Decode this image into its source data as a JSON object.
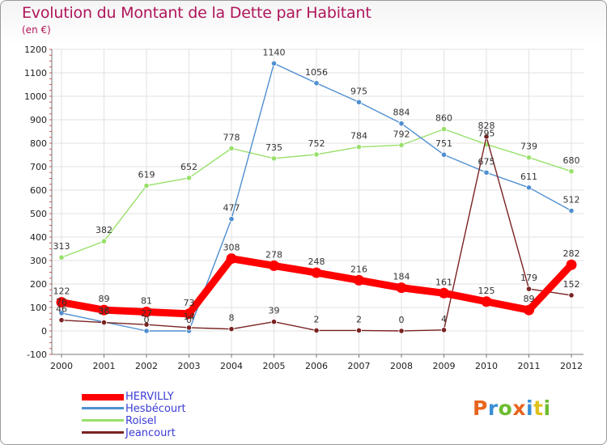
{
  "title": "Evolution du Montant de la Dette par Habitant",
  "subtitle": "(en €)",
  "logo": {
    "text": "Proxiti",
    "colors": [
      "#e8641e",
      "#3a8fd6",
      "#6cbc2f",
      "#e8641e",
      "#3a8fd6",
      "#e0c21b",
      "#6cbc2f"
    ]
  },
  "colors": {
    "title": "#b0155a",
    "legend_text": "#3b3bd6",
    "axis": "#777777",
    "grid": "#e2e2e2",
    "minor_tick": "#e05050"
  },
  "chart_data": {
    "type": "line",
    "title": "Evolution du Montant de la Dette par Habitant",
    "subtitle": "(en €)",
    "x": [
      "2000",
      "2001",
      "2002",
      "2003",
      "2004",
      "2005",
      "2006",
      "2007",
      "2008",
      "2009",
      "2010",
      "2011",
      "2012"
    ],
    "ylim": [
      -100,
      1200
    ],
    "yticks": [
      -100,
      0,
      100,
      200,
      300,
      400,
      500,
      600,
      700,
      800,
      900,
      1000,
      1100,
      1200
    ],
    "grid": true,
    "legend_position": "bottom-left",
    "series": [
      {
        "name": "HERVILLY",
        "color": "#ff0000",
        "values": [
          122,
          89,
          81,
          73,
          308,
          278,
          248,
          216,
          184,
          161,
          125,
          89,
          282
        ]
      },
      {
        "name": "Hesbécourt",
        "color": "#4f8fd0",
        "values": [
          76,
          38,
          0,
          0,
          477,
          1140,
          1056,
          975,
          884,
          751,
          675,
          611,
          512
        ]
      },
      {
        "name": "Roisel",
        "color": "#99e06a",
        "values": [
          313,
          382,
          619,
          652,
          778,
          735,
          752,
          784,
          792,
          860,
          795,
          739,
          680
        ]
      },
      {
        "name": "Jeancourt",
        "color": "#7a2222",
        "values": [
          46,
          36,
          27,
          14,
          8,
          39,
          2,
          2,
          0,
          4,
          828,
          179,
          152
        ]
      }
    ],
    "data_labels": [
      [
        "122",
        "89",
        "81",
        "73",
        "308",
        "278",
        "248",
        "216",
        "184",
        "161",
        "125",
        "89",
        "282"
      ],
      [
        "76",
        "38",
        "0",
        "0",
        "477",
        "1140",
        "1056",
        "975",
        "884",
        "751",
        "675",
        "611",
        "512"
      ],
      [
        "313",
        "382",
        "619",
        "652",
        "778",
        "735",
        "752",
        "784",
        "792",
        "860",
        "795",
        "739",
        "680"
      ],
      [
        "46",
        "36",
        "27",
        "14",
        "8",
        "39",
        "2",
        "2",
        "0",
        "4",
        "828",
        "179",
        "152"
      ]
    ]
  }
}
